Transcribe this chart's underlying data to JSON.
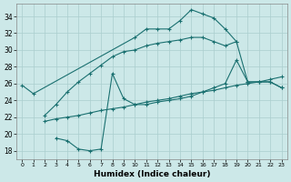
{
  "xlabel": "Humidex (Indice chaleur)",
  "bg_color": "#cce8e8",
  "grid_color": "#aacece",
  "line_color": "#1a7070",
  "xlim": [
    -0.5,
    23.5
  ],
  "ylim": [
    17,
    35.5
  ],
  "xticks": [
    0,
    1,
    2,
    3,
    4,
    5,
    6,
    7,
    8,
    9,
    10,
    11,
    12,
    13,
    14,
    15,
    16,
    17,
    18,
    19,
    20,
    21,
    22,
    23
  ],
  "yticks": [
    18,
    20,
    22,
    24,
    26,
    28,
    30,
    32,
    34
  ],
  "series": [
    {
      "x": [
        0,
        1,
        10,
        11,
        12,
        13,
        14,
        15,
        16,
        17,
        18,
        19
      ],
      "y": [
        25.8,
        24.8,
        31.5,
        32.5,
        32.5,
        32.5,
        33.5,
        34.8,
        34.3,
        33.8,
        32.5,
        31.0
      ]
    },
    {
      "x": [
        2,
        3,
        4,
        5,
        6,
        7,
        8,
        9,
        10,
        11,
        12,
        13,
        14,
        15,
        16,
        17,
        18,
        19,
        20,
        21,
        22,
        23
      ],
      "y": [
        22.2,
        23.5,
        25.0,
        26.2,
        27.2,
        28.2,
        29.2,
        29.8,
        30.0,
        30.5,
        30.8,
        31.0,
        31.2,
        31.5,
        31.5,
        31.0,
        30.5,
        31.0,
        26.2,
        26.2,
        26.2,
        25.5
      ]
    },
    {
      "x": [
        2,
        3,
        4,
        5,
        6,
        7,
        8,
        9,
        10,
        11,
        12,
        13,
        14,
        15,
        16,
        17,
        18,
        19,
        20,
        21,
        22,
        23
      ],
      "y": [
        21.5,
        21.8,
        22.0,
        22.2,
        22.5,
        22.8,
        23.0,
        23.2,
        23.5,
        23.8,
        24.0,
        24.2,
        24.5,
        24.8,
        25.0,
        25.2,
        25.5,
        25.8,
        26.0,
        26.2,
        26.5,
        26.8
      ]
    },
    {
      "x": [
        3,
        4,
        5,
        6,
        7,
        8,
        9,
        10,
        11,
        12,
        13,
        14,
        15,
        16,
        17,
        18,
        19,
        20,
        21,
        22,
        23
      ],
      "y": [
        19.5,
        19.2,
        18.2,
        18.0,
        18.2,
        27.2,
        24.2,
        23.5,
        23.5,
        23.8,
        24.0,
        24.2,
        24.5,
        25.0,
        25.5,
        26.0,
        28.8,
        26.2,
        26.2,
        26.2,
        25.5
      ]
    }
  ]
}
